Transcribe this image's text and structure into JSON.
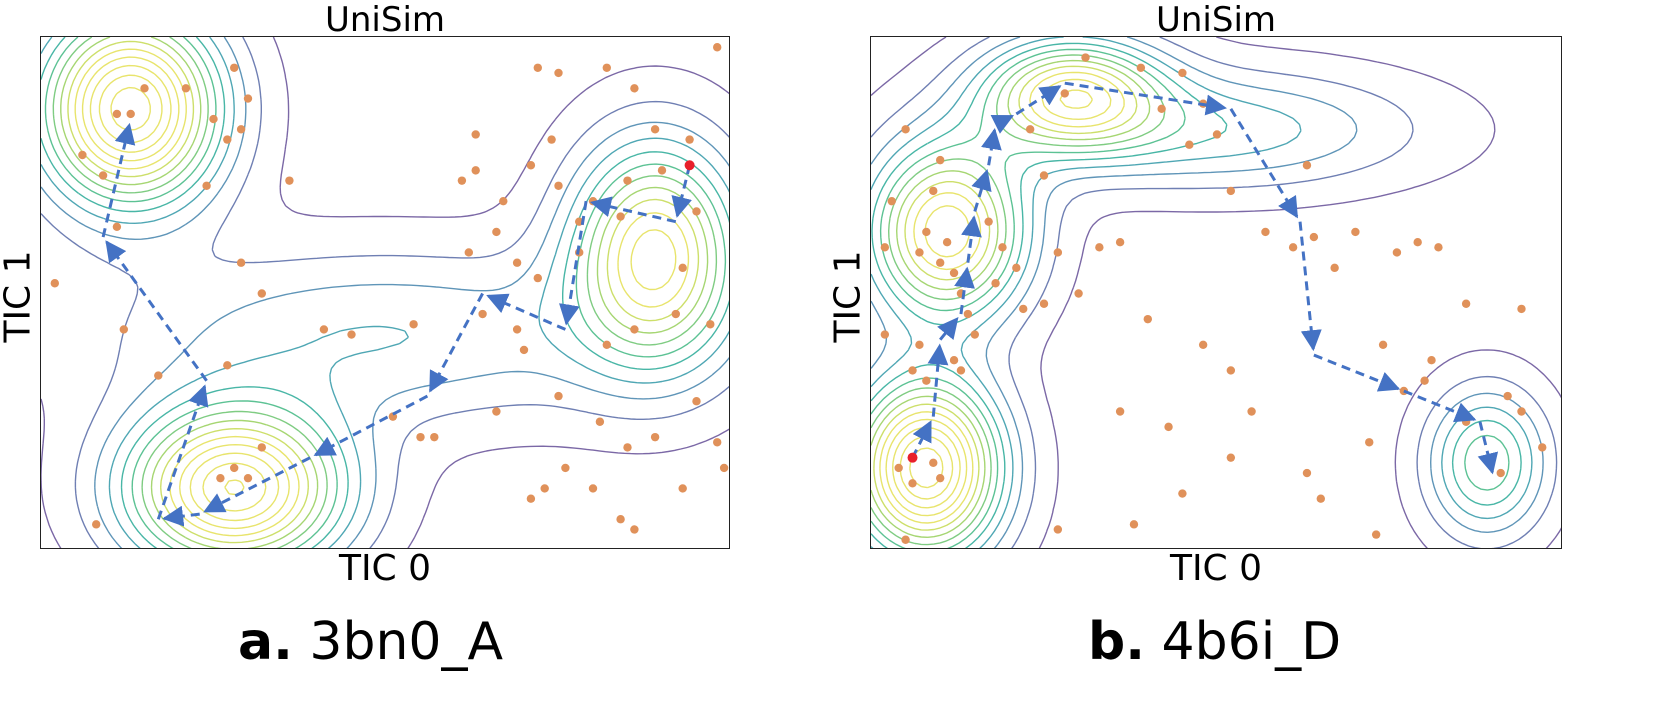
{
  "chart_data": [
    {
      "type": "scatter",
      "panel_letter": "a.",
      "protein_id": "3bn0_A",
      "title": "UniSim",
      "xlabel": "TIC 0",
      "ylabel": "TIC 1",
      "xlim": [
        0,
        1
      ],
      "ylim": [
        0,
        1
      ],
      "ticks": "none",
      "grid": false,
      "background": "density contours (viridis, low=purple, high=yellow)",
      "density_wells": [
        {
          "x": 0.13,
          "y": 0.86,
          "amp": 1.0,
          "sx": 0.09,
          "sy": 0.13
        },
        {
          "x": 0.28,
          "y": 0.12,
          "amp": 0.95,
          "sx": 0.11,
          "sy": 0.11
        },
        {
          "x": 0.89,
          "y": 0.58,
          "amp": 0.75,
          "sx": 0.085,
          "sy": 0.15
        },
        {
          "x": 0.5,
          "y": 0.42,
          "amp": 0.25,
          "sx": 0.28,
          "sy": 0.12
        }
      ],
      "samples": [
        [
          0.11,
          0.85
        ],
        [
          0.13,
          0.85
        ],
        [
          0.15,
          0.9
        ],
        [
          0.21,
          0.9
        ],
        [
          0.28,
          0.94
        ],
        [
          0.25,
          0.84
        ],
        [
          0.3,
          0.88
        ],
        [
          0.27,
          0.8
        ],
        [
          0.29,
          0.82
        ],
        [
          0.24,
          0.71
        ],
        [
          0.09,
          0.73
        ],
        [
          0.06,
          0.77
        ],
        [
          0.11,
          0.63
        ],
        [
          0.02,
          0.52
        ],
        [
          0.29,
          0.56
        ],
        [
          0.32,
          0.5
        ],
        [
          0.36,
          0.72
        ],
        [
          0.12,
          0.43
        ],
        [
          0.17,
          0.34
        ],
        [
          0.27,
          0.36
        ],
        [
          0.08,
          0.05
        ],
        [
          0.26,
          0.14
        ],
        [
          0.3,
          0.14
        ],
        [
          0.28,
          0.16
        ],
        [
          0.32,
          0.2
        ],
        [
          0.41,
          0.43
        ],
        [
          0.45,
          0.42
        ],
        [
          0.54,
          0.44
        ],
        [
          0.51,
          0.26
        ],
        [
          0.57,
          0.22
        ],
        [
          0.64,
          0.46
        ],
        [
          0.69,
          0.43
        ],
        [
          0.7,
          0.39
        ],
        [
          0.86,
          0.43
        ],
        [
          0.61,
          0.72
        ],
        [
          0.63,
          0.74
        ],
        [
          0.67,
          0.68
        ],
        [
          0.66,
          0.62
        ],
        [
          0.62,
          0.58
        ],
        [
          0.69,
          0.56
        ],
        [
          0.72,
          0.53
        ],
        [
          0.63,
          0.81
        ],
        [
          0.71,
          0.75
        ],
        [
          0.74,
          0.8
        ],
        [
          0.75,
          0.71
        ],
        [
          0.78,
          0.64
        ],
        [
          0.8,
          0.68
        ],
        [
          0.85,
          0.72
        ],
        [
          0.89,
          0.82
        ],
        [
          0.86,
          0.9
        ],
        [
          0.82,
          0.94
        ],
        [
          0.72,
          0.94
        ],
        [
          0.75,
          0.93
        ],
        [
          0.9,
          0.74
        ],
        [
          0.94,
          0.8
        ],
        [
          0.98,
          0.98
        ],
        [
          0.95,
          0.66
        ],
        [
          0.93,
          0.55
        ],
        [
          0.97,
          0.44
        ],
        [
          0.84,
          0.65
        ],
        [
          0.78,
          0.58
        ],
        [
          0.82,
          0.4
        ],
        [
          0.92,
          0.46
        ],
        [
          0.66,
          0.27
        ],
        [
          0.75,
          0.3
        ],
        [
          0.81,
          0.25
        ],
        [
          0.85,
          0.2
        ],
        [
          0.76,
          0.16
        ],
        [
          0.73,
          0.12
        ],
        [
          0.71,
          0.1
        ],
        [
          0.8,
          0.12
        ],
        [
          0.89,
          0.22
        ],
        [
          0.98,
          0.21
        ],
        [
          0.99,
          0.16
        ],
        [
          0.84,
          0.06
        ],
        [
          0.86,
          0.04
        ],
        [
          0.95,
          0.29
        ],
        [
          0.93,
          0.12
        ],
        [
          0.55,
          0.22
        ]
      ],
      "start_point": [
        0.94,
        0.75
      ],
      "path": [
        [
          0.94,
          0.75
        ],
        [
          0.92,
          0.64
        ],
        [
          0.79,
          0.68
        ],
        [
          0.76,
          0.43
        ],
        [
          0.64,
          0.5
        ],
        [
          0.56,
          0.3
        ],
        [
          0.39,
          0.18
        ],
        [
          0.23,
          0.07
        ],
        [
          0.17,
          0.06
        ],
        [
          0.24,
          0.33
        ],
        [
          0.09,
          0.61
        ],
        [
          0.13,
          0.84
        ]
      ],
      "colors": {
        "samples": "#e0915a",
        "start": "#e8202a",
        "path": "#4472c4"
      }
    },
    {
      "type": "scatter",
      "panel_letter": "b.",
      "protein_id": "4b6i_D",
      "title": "UniSim",
      "xlabel": "TIC 0",
      "ylabel": "TIC 1",
      "xlim": [
        0,
        1
      ],
      "ylim": [
        0,
        1
      ],
      "ticks": "none",
      "grid": false,
      "background": "density contours (viridis, low=purple, high=yellow)",
      "density_wells": [
        {
          "x": 0.08,
          "y": 0.16,
          "amp": 1.0,
          "sx": 0.075,
          "sy": 0.12
        },
        {
          "x": 0.11,
          "y": 0.62,
          "amp": 0.8,
          "sx": 0.08,
          "sy": 0.12
        },
        {
          "x": 0.29,
          "y": 0.89,
          "amp": 0.7,
          "sx": 0.09,
          "sy": 0.075
        },
        {
          "x": 0.89,
          "y": 0.17,
          "amp": 0.45,
          "sx": 0.06,
          "sy": 0.1
        },
        {
          "x": 0.5,
          "y": 0.82,
          "amp": 0.3,
          "sx": 0.2,
          "sy": 0.08
        }
      ],
      "samples": [
        [
          0.02,
          0.59
        ],
        [
          0.03,
          0.68
        ],
        [
          0.05,
          0.82
        ],
        [
          0.06,
          0.35
        ],
        [
          0.07,
          0.58
        ],
        [
          0.08,
          0.62
        ],
        [
          0.09,
          0.7
        ],
        [
          0.1,
          0.76
        ],
        [
          0.12,
          0.54
        ],
        [
          0.13,
          0.5
        ],
        [
          0.14,
          0.46
        ],
        [
          0.15,
          0.42
        ],
        [
          0.11,
          0.6
        ],
        [
          0.1,
          0.56
        ],
        [
          0.12,
          0.37
        ],
        [
          0.13,
          0.35
        ],
        [
          0.07,
          0.4
        ],
        [
          0.08,
          0.33
        ],
        [
          0.04,
          0.16
        ],
        [
          0.06,
          0.13
        ],
        [
          0.09,
          0.17
        ],
        [
          0.1,
          0.14
        ],
        [
          0.05,
          0.02
        ],
        [
          0.02,
          0.42
        ],
        [
          0.17,
          0.64
        ],
        [
          0.19,
          0.59
        ],
        [
          0.18,
          0.52
        ],
        [
          0.21,
          0.55
        ],
        [
          0.22,
          0.47
        ],
        [
          0.25,
          0.73
        ],
        [
          0.27,
          0.58
        ],
        [
          0.25,
          0.48
        ],
        [
          0.3,
          0.5
        ],
        [
          0.33,
          0.59
        ],
        [
          0.23,
          0.82
        ],
        [
          0.28,
          0.89
        ],
        [
          0.31,
          0.96
        ],
        [
          0.39,
          0.94
        ],
        [
          0.42,
          0.86
        ],
        [
          0.45,
          0.93
        ],
        [
          0.48,
          0.87
        ],
        [
          0.5,
          0.81
        ],
        [
          0.46,
          0.79
        ],
        [
          0.52,
          0.7
        ],
        [
          0.57,
          0.62
        ],
        [
          0.61,
          0.59
        ],
        [
          0.64,
          0.61
        ],
        [
          0.67,
          0.55
        ],
        [
          0.63,
          0.75
        ],
        [
          0.7,
          0.62
        ],
        [
          0.76,
          0.58
        ],
        [
          0.79,
          0.6
        ],
        [
          0.82,
          0.59
        ],
        [
          0.86,
          0.48
        ],
        [
          0.94,
          0.47
        ],
        [
          0.74,
          0.4
        ],
        [
          0.77,
          0.31
        ],
        [
          0.8,
          0.33
        ],
        [
          0.92,
          0.3
        ],
        [
          0.97,
          0.2
        ],
        [
          0.94,
          0.27
        ],
        [
          0.72,
          0.21
        ],
        [
          0.63,
          0.15
        ],
        [
          0.55,
          0.27
        ],
        [
          0.48,
          0.4
        ],
        [
          0.52,
          0.35
        ],
        [
          0.36,
          0.27
        ],
        [
          0.43,
          0.24
        ],
        [
          0.45,
          0.11
        ],
        [
          0.52,
          0.18
        ],
        [
          0.38,
          0.05
        ],
        [
          0.27,
          0.04
        ],
        [
          0.65,
          0.1
        ],
        [
          0.86,
          0.25
        ],
        [
          0.91,
          0.15
        ],
        [
          0.73,
          0.03
        ],
        [
          0.81,
          0.37
        ],
        [
          0.36,
          0.6
        ],
        [
          0.4,
          0.45
        ]
      ],
      "start_point": [
        0.06,
        0.18
      ],
      "path": [
        [
          0.06,
          0.18
        ],
        [
          0.09,
          0.26
        ],
        [
          0.1,
          0.41
        ],
        [
          0.13,
          0.46
        ],
        [
          0.14,
          0.56
        ],
        [
          0.15,
          0.66
        ],
        [
          0.17,
          0.75
        ],
        [
          0.18,
          0.83
        ],
        [
          0.21,
          0.85
        ],
        [
          0.28,
          0.91
        ],
        [
          0.52,
          0.86
        ],
        [
          0.62,
          0.64
        ],
        [
          0.64,
          0.38
        ],
        [
          0.77,
          0.31
        ],
        [
          0.88,
          0.25
        ],
        [
          0.9,
          0.14
        ]
      ],
      "colors": {
        "samples": "#e0915a",
        "start": "#e8202a",
        "path": "#4472c4"
      }
    }
  ]
}
